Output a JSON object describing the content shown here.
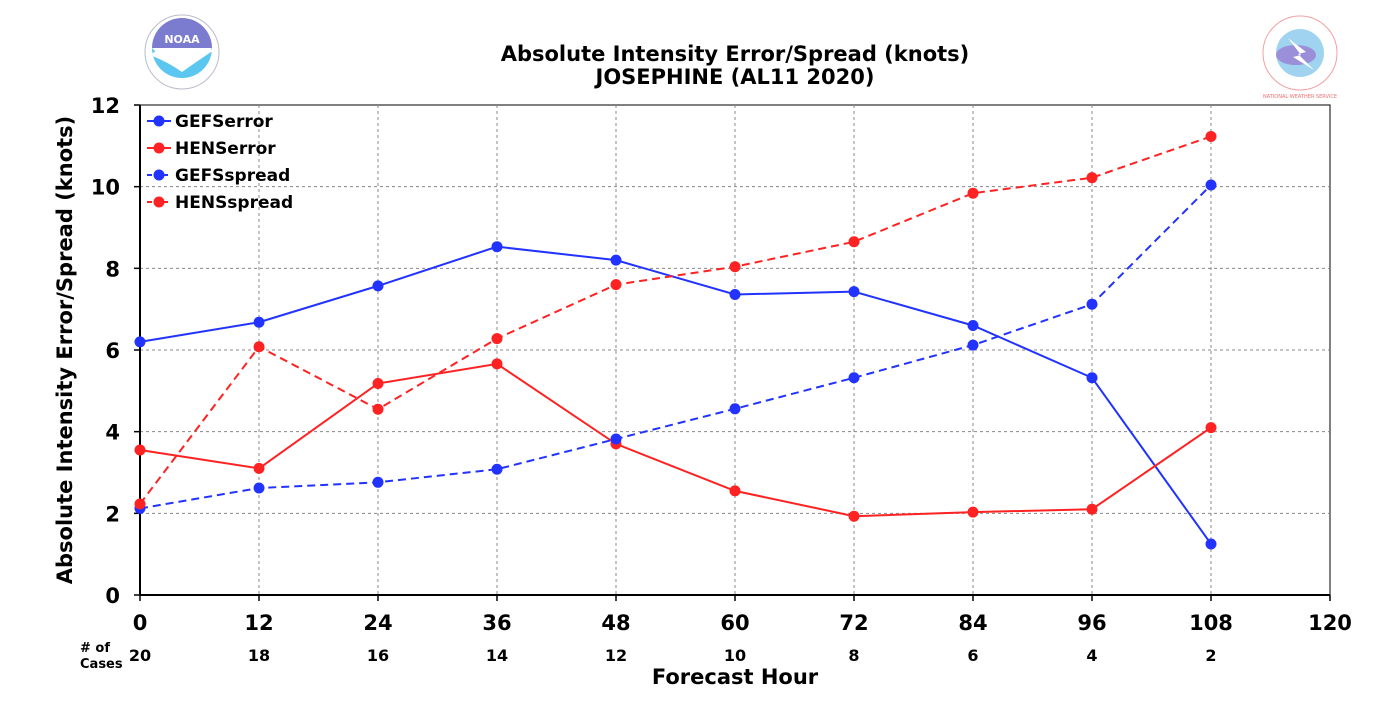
{
  "chart_data": {
    "type": "line",
    "title": "Absolute Intensity Error/Spread (knots)",
    "subtitle": "JOSEPHINE (AL11 2020)",
    "xlabel": "Forecast Hour",
    "ylabel": "Absolute Intensity Error/Spread (knots)",
    "xlim": [
      0,
      120
    ],
    "ylim": [
      0,
      12
    ],
    "x_ticks": [
      "0",
      "12",
      "24",
      "36",
      "48",
      "60",
      "72",
      "84",
      "96",
      "108",
      "120"
    ],
    "y_ticks": [
      "0",
      "2",
      "4",
      "6",
      "8",
      "10",
      "12"
    ],
    "grid": true,
    "legend_position": "top-left",
    "cases_label_line1": "# of",
    "cases_label_line2": "Cases",
    "cases": [
      "20",
      "18",
      "16",
      "14",
      "12",
      "10",
      "8",
      "6",
      "4",
      "2"
    ],
    "x": [
      0,
      12,
      24,
      36,
      48,
      60,
      72,
      84,
      96,
      108
    ],
    "series": [
      {
        "name": "GEFSerror",
        "color": "#2233ff",
        "style": "solid",
        "values": [
          6.2,
          6.68,
          7.57,
          8.53,
          8.2,
          7.36,
          7.43,
          6.6,
          5.32,
          1.25
        ]
      },
      {
        "name": "HENSerror",
        "color": "#ff2222",
        "style": "solid",
        "values": [
          3.55,
          3.1,
          5.18,
          5.66,
          3.7,
          2.55,
          1.93,
          2.03,
          2.1,
          4.1
        ]
      },
      {
        "name": "GEFSspread",
        "color": "#2233ff",
        "style": "dashed",
        "values": [
          2.12,
          2.62,
          2.76,
          3.08,
          3.82,
          4.56,
          5.32,
          6.12,
          7.12,
          10.04
        ]
      },
      {
        "name": "HENSspread",
        "color": "#ff2222",
        "style": "dashed",
        "values": [
          2.23,
          6.08,
          4.55,
          6.28,
          7.6,
          8.04,
          8.65,
          9.84,
          10.22,
          11.23
        ]
      }
    ]
  },
  "logos": {
    "left": "NOAA",
    "right": "NATIONAL WEATHER SERVICE"
  }
}
